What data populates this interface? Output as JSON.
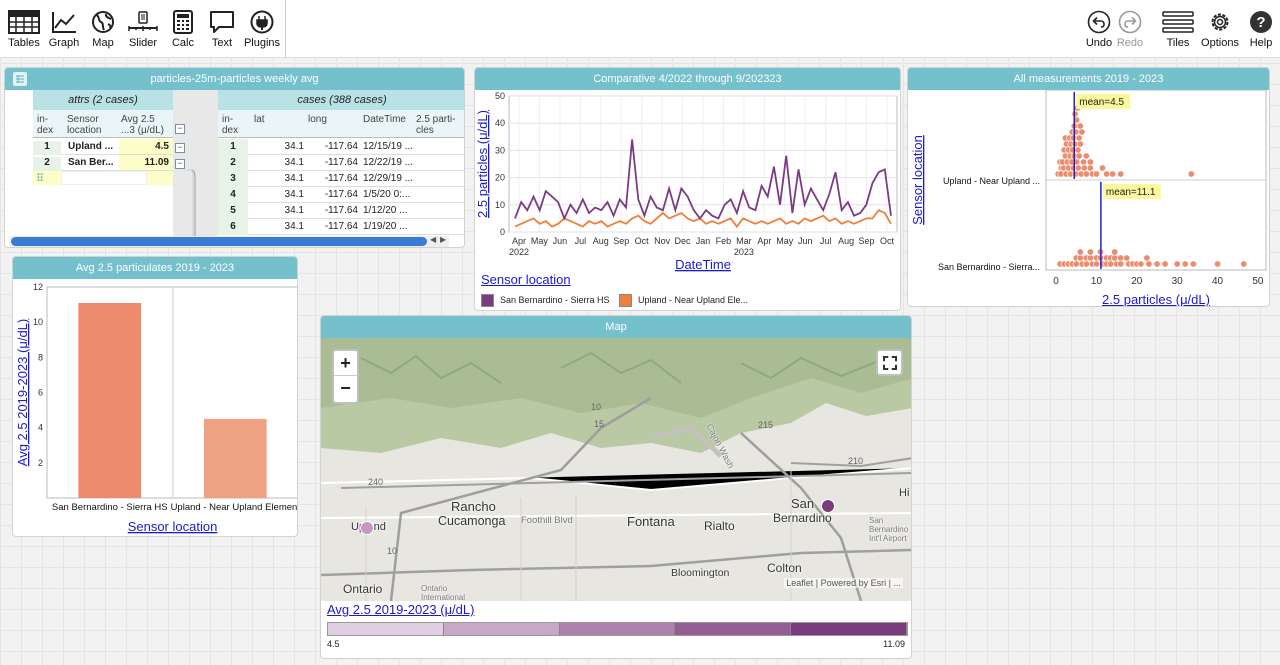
{
  "toolbar": {
    "left": [
      {
        "id": "tables",
        "label": "Tables",
        "icon": "table-icon"
      },
      {
        "id": "graph",
        "label": "Graph",
        "icon": "graph-icon"
      },
      {
        "id": "map",
        "label": "Map",
        "icon": "globe-icon"
      },
      {
        "id": "slider",
        "label": "Slider",
        "icon": "slider-icon"
      },
      {
        "id": "calc",
        "label": "Calc",
        "icon": "calculator-icon"
      },
      {
        "id": "text",
        "label": "Text",
        "icon": "text-bubble-icon"
      },
      {
        "id": "plugins",
        "label": "Plugins",
        "icon": "plug-icon"
      }
    ],
    "right": [
      {
        "id": "undo",
        "label": "Undo",
        "icon": "undo-icon"
      },
      {
        "id": "redo",
        "label": "Redo",
        "icon": "redo-icon"
      },
      {
        "id": "tiles",
        "label": "Tiles",
        "icon": "tiles-icon"
      },
      {
        "id": "options",
        "label": "Options",
        "icon": "gear-icon"
      },
      {
        "id": "help",
        "label": "Help",
        "icon": "help-icon"
      }
    ]
  },
  "table": {
    "title": "particles-25m-particles weekly avg",
    "attrs_header": "attrs (2 cases)",
    "cases_header": "cases (388 cases)",
    "attrs_cols": {
      "index1": "in-",
      "index2": "dex",
      "loc1": "Sensor",
      "loc2": "location",
      "avg1": "Avg 2.5",
      "avg2": "...3 (μ/dL)"
    },
    "attrs_rows": [
      {
        "i": "1",
        "loc": "Upland ...",
        "avg": "4.5"
      },
      {
        "i": "2",
        "loc": "San Ber...",
        "avg": "11.09"
      }
    ],
    "cases_cols": {
      "index1": "in-",
      "index2": "dex",
      "lat": "lat",
      "long": "long",
      "dt": "DateTime",
      "p1": "2.5 parti-",
      "p2": "cles"
    },
    "cases_rows": [
      {
        "i": "1",
        "lat": "34.1",
        "long": "-117.64",
        "dt": "12/15/19 ..."
      },
      {
        "i": "2",
        "lat": "34.1",
        "long": "-117.64",
        "dt": "12/22/19 ..."
      },
      {
        "i": "3",
        "lat": "34.1",
        "long": "-117.64",
        "dt": "12/29/19 ..."
      },
      {
        "i": "4",
        "lat": "34.1",
        "long": "-117.64",
        "dt": "1/5/20 0:..."
      },
      {
        "i": "5",
        "lat": "34.1",
        "long": "-117.64",
        "dt": "1/12/20 ..."
      },
      {
        "i": "6",
        "lat": "34.1",
        "long": "-117.64",
        "dt": "1/19/20 ..."
      }
    ]
  },
  "line_tile": {
    "title": "Comparative 4/2022 through 9/202323",
    "legend_title": "Sensor location"
  },
  "bar_tile": {
    "title": "Avg 2.5 particulates 2019 - 2023"
  },
  "dot_tile": {
    "title": "All measurements 2019 - 2023"
  },
  "map": {
    "title": "Map",
    "zoom_in": "+",
    "zoom_out": "−",
    "places": [
      {
        "id": "rancho",
        "text": "Rancho"
      },
      {
        "id": "cucamonga",
        "text": "Cucamonga"
      },
      {
        "id": "fontana",
        "text": "Fontana"
      },
      {
        "id": "rialto",
        "text": "Rialto"
      },
      {
        "id": "san",
        "text": "San"
      },
      {
        "id": "bernardino",
        "text": "Bernardino"
      },
      {
        "id": "upland",
        "text": "Upland"
      },
      {
        "id": "ontario",
        "text": "Ontario"
      },
      {
        "id": "colton",
        "text": "Colton"
      },
      {
        "id": "bloomington",
        "text": "Bloomington"
      },
      {
        "id": "foothill",
        "text": "Foothill Blvd"
      },
      {
        "id": "hi",
        "text": "Hi"
      },
      {
        "id": "cajon",
        "text": "Cajon Wash"
      },
      {
        "id": "ontarioair",
        "text": "Ontario"
      },
      {
        "id": "ontarioair2",
        "text": "International"
      },
      {
        "id": "sbair",
        "text": "San"
      },
      {
        "id": "sbair2",
        "text": "Bernardino"
      },
      {
        "id": "sbair3",
        "text": "Int'l Airport"
      }
    ],
    "roads": [
      "210",
      "215",
      "10",
      "240",
      "15",
      "10"
    ],
    "attribution": "Leaflet | Powered by Esri | ...",
    "legend_title": "Avg 2.5 2019-2023 (μ/dL)",
    "legend_min": "4.5",
    "legend_max": "11.09",
    "legend_colors": [
      "#e0cfe2",
      "#c8a8c8",
      "#ad83ad",
      "#925e94",
      "#7a3b7c"
    ],
    "points": [
      {
        "name": "Upland",
        "value": 4.5,
        "color": "#c697c4"
      },
      {
        "name": "San Bernardino",
        "value": 11.09,
        "color": "#7a3b7c"
      }
    ]
  },
  "chart_data": [
    {
      "type": "line",
      "title": "Comparative 4/2022 through 9/202323",
      "xlabel": "DateTime",
      "ylabel": "2.5 particles (μ/dL)",
      "ylim": [
        0,
        50
      ],
      "y_ticks": [
        0,
        10,
        20,
        30,
        40,
        50
      ],
      "x_tick_labels": [
        "Apr",
        "May",
        "Jun",
        "Jul",
        "Aug",
        "Sep",
        "Oct",
        "Nov",
        "Dec",
        "Jan",
        "Feb",
        "Mar",
        "Apr",
        "May",
        "Jun",
        "Jul",
        "Aug",
        "Sep",
        "Oct"
      ],
      "x_year_labels": [
        {
          "label": "2022",
          "at": "Apr"
        },
        {
          "label": "2023",
          "at": "Mar"
        }
      ],
      "grid": true,
      "legend_position": "bottom",
      "legend_title": "Sensor location",
      "series": [
        {
          "name": "San Bernardino - Sierra HS",
          "color": "#7b3b82",
          "values": [
            5,
            11,
            8,
            13,
            8,
            15,
            13,
            11,
            5,
            10,
            7,
            12,
            7,
            9,
            8,
            11,
            6,
            12,
            9,
            34,
            12,
            6,
            13,
            9,
            8,
            16,
            8,
            16,
            13,
            8,
            5,
            8,
            6,
            5,
            10,
            12,
            7,
            15,
            9,
            8,
            17,
            13,
            24,
            10,
            28,
            7,
            23,
            10,
            16,
            12,
            8,
            14,
            22,
            8,
            11,
            6,
            7,
            10,
            18,
            22,
            23,
            6
          ]
        },
        {
          "name": "Upland - Near Upland Ele...",
          "color": "#f07f39",
          "values": [
            2,
            3,
            4,
            5,
            3,
            4,
            2,
            3,
            5,
            4,
            3,
            2,
            4,
            3,
            4,
            2,
            3,
            4,
            3,
            5,
            6,
            4,
            3,
            5,
            7,
            5,
            6,
            7,
            5,
            4,
            5,
            3,
            4,
            3,
            4,
            5,
            2,
            5,
            4,
            3,
            4,
            3,
            4,
            5,
            3,
            4,
            3,
            5,
            4,
            5,
            6,
            4,
            5,
            3,
            4,
            3,
            4,
            5,
            5,
            8,
            7,
            3
          ]
        }
      ]
    },
    {
      "type": "bar",
      "title": "Avg 2.5 particulates 2019 - 2023",
      "categories": [
        "San Bernardino - Sierra HS",
        "Upland - Near Upland Element"
      ],
      "values": [
        11.09,
        4.5
      ],
      "colors": [
        "#ec8c6c",
        "#efa283"
      ],
      "xlabel": "Sensor location",
      "ylabel": "Avg 2.5 2019-2023 (μ/dL)",
      "ylim": [
        0,
        12
      ],
      "y_ticks": [
        2,
        4,
        6,
        8,
        10,
        12
      ]
    },
    {
      "type": "scatter",
      "title": "All measurements 2019 - 2023",
      "xlabel": "2.5 particles (μ/dL)",
      "ylabel": "Sensor location",
      "xlim": [
        -2.5,
        52
      ],
      "x_ticks": [
        0,
        10,
        20,
        30,
        40,
        50
      ],
      "categories": [
        "Upland - Near Upland ...",
        "San Bernardino - Sierra..."
      ],
      "means": [
        {
          "category": "Upland - Near Upland ...",
          "label": "mean=4.5",
          "value": 4.5
        },
        {
          "category": "San Bernardino - Sierra...",
          "label": "mean=11.1",
          "value": 11.1
        }
      ],
      "point_color": "#ec8c6c",
      "mean_color": "#1f22c9",
      "series": [
        {
          "category": "Upland - Near Upland ...",
          "values": [
            0.5,
            0.8,
            1.0,
            1.2,
            1.4,
            1.6,
            1.8,
            2.0,
            2.1,
            2.3,
            2.5,
            2.6,
            2.8,
            3.0,
            3.1,
            3.2,
            3.4,
            3.5,
            3.6,
            3.8,
            3.9,
            4.0,
            4.1,
            4.2,
            4.3,
            4.4,
            4.5,
            4.6,
            4.7,
            4.8,
            4.9,
            5.0,
            5.1,
            5.2,
            5.4,
            5.5,
            5.7,
            5.9,
            6.0,
            6.2,
            6.5,
            6.8,
            7.0,
            7.5,
            8.0,
            8.5,
            9.0,
            10.0,
            11.0,
            12.5,
            14.0,
            16.0,
            33.5
          ]
        },
        {
          "category": "San Bernardino - Sierra...",
          "values": [
            1.0,
            2.0,
            3.0,
            4.0,
            4.5,
            5.0,
            5.5,
            6.0,
            6.5,
            7.0,
            7.5,
            8.0,
            8.5,
            9.0,
            9.5,
            10.0,
            10.5,
            11.0,
            11.5,
            12.0,
            12.5,
            13.0,
            13.5,
            14.0,
            14.5,
            15.0,
            15.5,
            16.0,
            17.0,
            18.0,
            19.0,
            20.0,
            21.0,
            22.0,
            23.0,
            25.0,
            27.0,
            30.0,
            32.0,
            34.0,
            40.0,
            46.5
          ]
        }
      ]
    }
  ]
}
